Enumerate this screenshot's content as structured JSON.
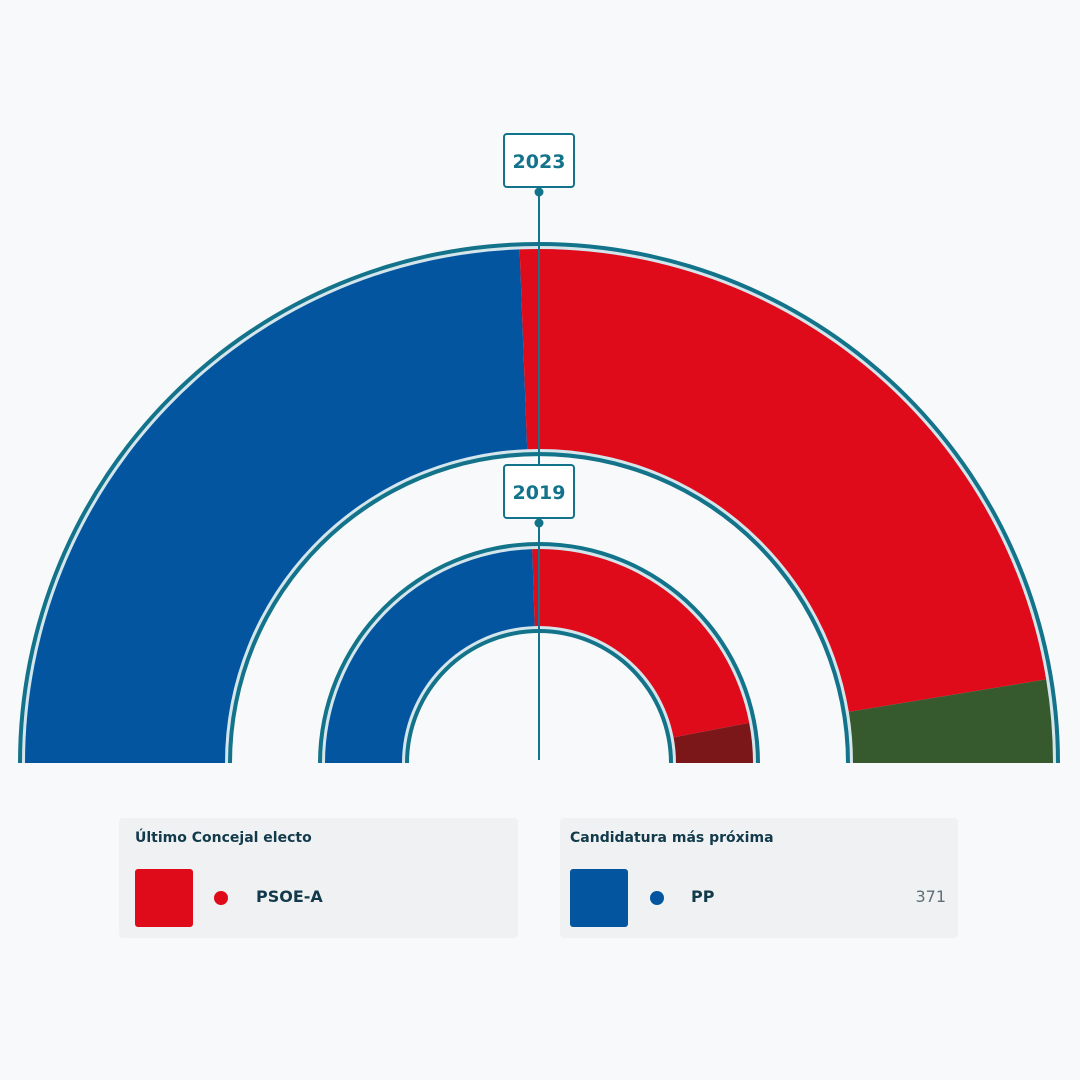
{
  "chart_data": {
    "type": "semicircle-parliament",
    "rings": [
      {
        "year": "2023",
        "segments": [
          {
            "party": "PP",
            "share": 0.488,
            "color": "#04559f"
          },
          {
            "party": "PSOE-A",
            "share": 0.46,
            "color": "#e00b1a"
          },
          {
            "party": "",
            "share": 0.052,
            "color": "#365a2d"
          }
        ]
      },
      {
        "year": "2019",
        "segments": [
          {
            "party": "PP",
            "share": 0.49,
            "color": "#04559f"
          },
          {
            "party": "PSOE-A",
            "share": 0.45,
            "color": "#e00b1a"
          },
          {
            "party": "",
            "share": 0.06,
            "color": "#7b1719"
          }
        ]
      }
    ]
  },
  "last_elected": {
    "title": "Último Concejal electo",
    "party": "PSOE-A",
    "color": "#e00b1a"
  },
  "next_candidate": {
    "title": "Candidatura más próxima",
    "party": "PP",
    "votes": "371",
    "color": "#04559f"
  }
}
